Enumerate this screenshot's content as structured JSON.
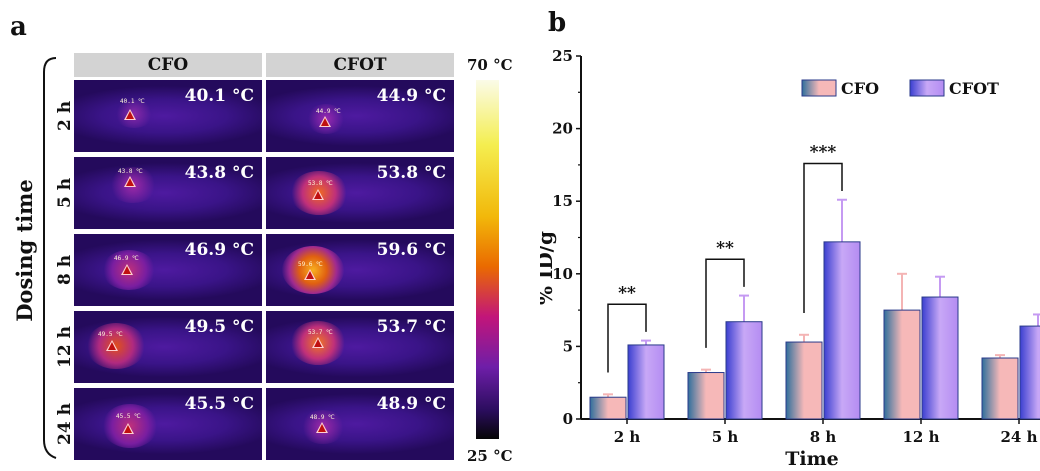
{
  "panel_a": {
    "letter": "a",
    "ylabel": "Dosing time",
    "columns": [
      "CFO",
      "CFOT"
    ],
    "rows": [
      "2 h",
      "5 h",
      "8 h",
      "12 h",
      "24 h"
    ],
    "cells": [
      [
        {
          "temp": "40.1 °C",
          "tag": "40.1 ℃"
        },
        {
          "temp": "44.9 °C",
          "tag": "44.9 ℃"
        }
      ],
      [
        {
          "temp": "43.8 °C",
          "tag": "43.8 ℃"
        },
        {
          "temp": "53.8 °C",
          "tag": "53.8 ℃"
        }
      ],
      [
        {
          "temp": "46.9 °C",
          "tag": "46.9 ℃"
        },
        {
          "temp": "59.6 °C",
          "tag": "59.6 ℃"
        }
      ],
      [
        {
          "temp": "49.5 °C",
          "tag": "49.5 ℃"
        },
        {
          "temp": "53.7 °C",
          "tag": "53.7 ℃"
        }
      ],
      [
        {
          "temp": "45.5 °C",
          "tag": "45.5 ℃"
        },
        {
          "temp": "48.9 °C",
          "tag": "48.9 ℃"
        }
      ]
    ],
    "colorbar": {
      "max_label": "70 °C",
      "min_label": "25 °C",
      "max": 70,
      "min": 25
    }
  },
  "chart_data": {
    "letter": "b",
    "type": "bar",
    "categories": [
      "2 h",
      "5 h",
      "8 h",
      "12 h",
      "24 h"
    ],
    "series": [
      {
        "name": "CFO",
        "values": [
          1.5,
          3.2,
          5.3,
          7.5,
          4.2
        ],
        "errors": [
          0.2,
          0.2,
          0.5,
          2.5,
          0.2
        ],
        "color": "#f4b4b4"
      },
      {
        "name": "CFOT",
        "values": [
          5.1,
          6.7,
          12.2,
          8.4,
          6.4
        ],
        "errors": [
          0.3,
          1.8,
          2.9,
          1.4,
          0.8
        ],
        "color": "#b98af0"
      }
    ],
    "xlabel": "Time",
    "ylabel": "% ID/g",
    "ylim": [
      0,
      25
    ],
    "yticks": [
      "0",
      "5",
      "10",
      "15",
      "20",
      "25"
    ],
    "legend_position": "top-right",
    "significance": [
      {
        "category": "2 h",
        "label": "**"
      },
      {
        "category": "5 h",
        "label": "**"
      },
      {
        "category": "8 h",
        "label": "***"
      }
    ]
  }
}
